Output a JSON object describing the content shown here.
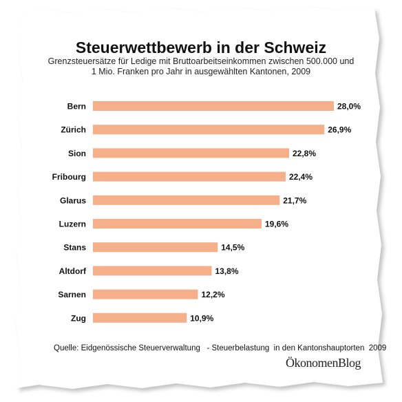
{
  "title": "Steuerwettbewerb in der Schweiz",
  "subtitle_line1": "Grenzsteuersätze für Ledige mit Bruttoarbeitseinkommen zwischen 500.000 und",
  "subtitle_line2": "1 Mio. Franken pro Jahr in ausgewählten Kantonen, 2009",
  "source": "Quelle: Eidgenössische Steuerverwaltung   - Steuerbelastung  in den Kantonshauptorten  2009",
  "brand": "ÖkonomenBlog",
  "colors": {
    "bar": "#F5B08A",
    "background": "#ffffff",
    "paper_shadow": "#9a9a9a"
  },
  "chart_data": {
    "type": "bar",
    "orientation": "horizontal",
    "categories": [
      "Bern",
      "Zürich",
      "Sion",
      "Fribourg",
      "Glarus",
      "Luzern",
      "Stans",
      "Altdorf",
      "Sarnen",
      "Zug"
    ],
    "values": [
      28.0,
      26.9,
      22.8,
      22.4,
      21.7,
      19.6,
      14.5,
      13.8,
      12.2,
      10.9
    ],
    "value_labels": [
      "28,0%",
      "26,9%",
      "22,8%",
      "22,4%",
      "21,7%",
      "19,6%",
      "14,5%",
      "13,8%",
      "12,2%",
      "10,9%"
    ],
    "xlim": [
      0,
      28.0
    ],
    "grid": false,
    "legend": "none"
  }
}
